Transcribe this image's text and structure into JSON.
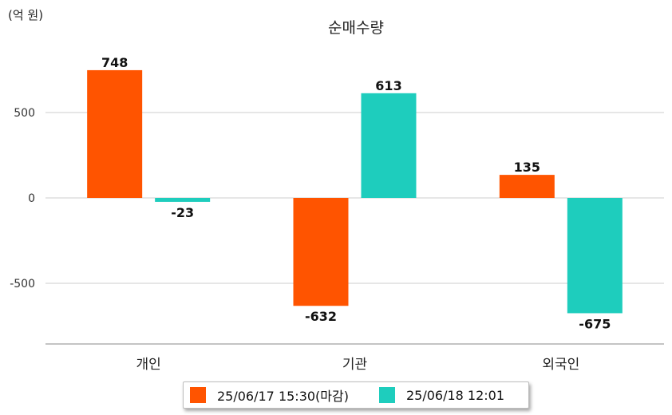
{
  "chart_data": {
    "type": "bar",
    "title": "순매수량",
    "unit_label": "(억 원)",
    "categories": [
      "개인",
      "기관",
      "외국인"
    ],
    "series": [
      {
        "name": "25/06/17 15:30(마감)",
        "color": "#ff5400",
        "values": [
          748,
          -632,
          135
        ]
      },
      {
        "name": "25/06/18 12:01",
        "color": "#1ecdbd",
        "values": [
          -23,
          613,
          -675
        ]
      }
    ],
    "yticks": [
      500,
      0,
      -500
    ],
    "ylim": [
      -840,
      930
    ],
    "grid": true,
    "legend_position": "bottom"
  }
}
